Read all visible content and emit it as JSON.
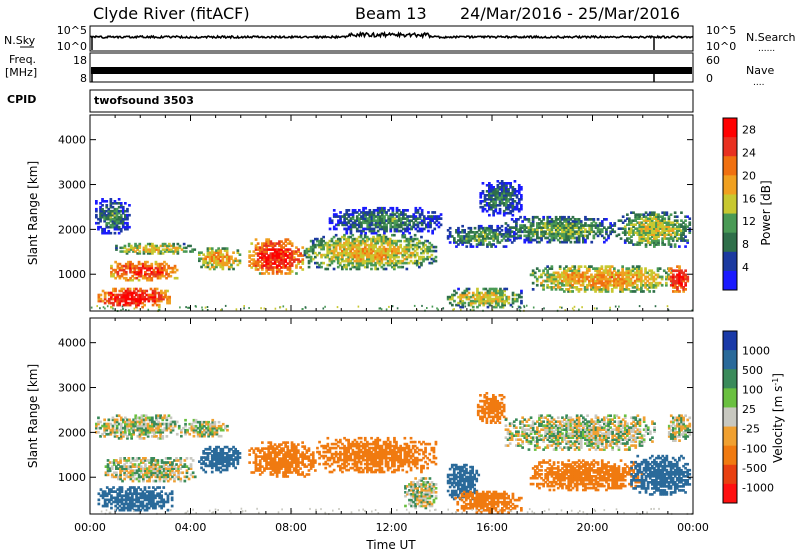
{
  "header": {
    "station_title": "Clyde River (fitACF)",
    "beam_label": "Beam 13",
    "date_range": "24/Mar/2016 - 25/Mar/2016"
  },
  "aux": {
    "nsky_label": "N.Sky",
    "nsearch_label": "N.Search",
    "nsearch_dots": "......",
    "freq_label_line1": "Freq.",
    "freq_label_line2": "[MHz]",
    "nave_label": "Nave",
    "nave_dots": "....",
    "cpid_label": "CPID",
    "cpid_value": "twofsound 3503",
    "noise_ticks_left": [
      "10^5",
      "10^0"
    ],
    "noise_ticks_right": [
      "10^5",
      "10^0"
    ],
    "freq_ticks": [
      "18",
      "8"
    ],
    "nave_ticks": [
      "60",
      "0"
    ]
  },
  "colors": {
    "power_scale": [
      "#1a1aff",
      "#1c3aa0",
      "#2f6f4a",
      "#4a9a55",
      "#c8c830",
      "#f0a020",
      "#f07010",
      "#e83020",
      "#ff0000"
    ],
    "velocity_scale": [
      "#1a3aa8",
      "#2a6a9a",
      "#3a8a5a",
      "#6ac040",
      "#c8c8c0",
      "#f0a030",
      "#f07a10",
      "#e84010",
      "#ff1010"
    ]
  },
  "chart_data": [
    {
      "type": "heatmap",
      "name": "power",
      "title": "",
      "xlabel": "",
      "ylabel": "Slant Range [km]",
      "xlim": [
        0,
        24
      ],
      "ylim": [
        180,
        4550
      ],
      "yticks": [
        "1000",
        "2000",
        "3000",
        "4000"
      ],
      "colorbar": {
        "label": "Power [dB]",
        "ticks": [
          "4",
          "8",
          "12",
          "16",
          "20",
          "24",
          "28"
        ],
        "range": [
          0,
          30
        ]
      },
      "features": [
        {
          "t0": 0.3,
          "t1": 3.2,
          "r0": 250,
          "r1": 700,
          "value": 28
        },
        {
          "t0": 0.8,
          "t1": 3.5,
          "r0": 850,
          "r1": 1300,
          "value": 26
        },
        {
          "t0": 1.0,
          "t1": 4.2,
          "r0": 1450,
          "r1": 1700,
          "value": 18
        },
        {
          "t0": 0.2,
          "t1": 1.6,
          "r0": 1900,
          "r1": 2700,
          "value": 10
        },
        {
          "t0": 4.3,
          "t1": 6.0,
          "r0": 1100,
          "r1": 1600,
          "value": 20
        },
        {
          "t0": 6.3,
          "t1": 8.5,
          "r0": 1000,
          "r1": 1800,
          "value": 27
        },
        {
          "t0": 8.5,
          "t1": 13.8,
          "r0": 1100,
          "r1": 1900,
          "value": 18
        },
        {
          "t0": 9.5,
          "t1": 14.0,
          "r0": 1900,
          "r1": 2500,
          "value": 10
        },
        {
          "t0": 14.2,
          "t1": 17.2,
          "r0": 250,
          "r1": 700,
          "value": 17
        },
        {
          "t0": 14.2,
          "t1": 17.0,
          "r0": 1600,
          "r1": 2100,
          "value": 12
        },
        {
          "t0": 15.5,
          "t1": 17.2,
          "r0": 2300,
          "r1": 3100,
          "value": 9
        },
        {
          "t0": 16.5,
          "t1": 21.0,
          "r0": 1700,
          "r1": 2300,
          "value": 13
        },
        {
          "t0": 17.5,
          "t1": 23.3,
          "r0": 600,
          "r1": 1200,
          "value": 20
        },
        {
          "t0": 21.0,
          "t1": 23.9,
          "r0": 1600,
          "r1": 2400,
          "value": 16
        },
        {
          "t0": 23.0,
          "t1": 23.9,
          "r0": 600,
          "r1": 1200,
          "value": 28
        }
      ]
    },
    {
      "type": "heatmap",
      "name": "velocity",
      "title": "",
      "xlabel": "Time UT",
      "ylabel": "Slant Range [km]",
      "xlim": [
        0,
        24
      ],
      "ylim": [
        180,
        4550
      ],
      "xticks": [
        "00:00",
        "04:00",
        "08:00",
        "12:00",
        "16:00",
        "20:00",
        "00:00"
      ],
      "yticks": [
        "1000",
        "2000",
        "3000",
        "4000"
      ],
      "colorbar": {
        "label": "Velocity [m s^-1]",
        "ticks": [
          "1000",
          "500",
          "100",
          "25",
          "-25",
          "-100",
          "-500",
          "-1000"
        ]
      },
      "features": [
        {
          "t0": 0.2,
          "t1": 3.5,
          "r0": 1850,
          "r1": 2400,
          "value": 0
        },
        {
          "t0": 0.3,
          "t1": 3.3,
          "r0": 250,
          "r1": 800,
          "value": 200
        },
        {
          "t0": 0.5,
          "t1": 4.3,
          "r0": 900,
          "r1": 1450,
          "value": 0
        },
        {
          "t0": 3.5,
          "t1": 5.5,
          "r0": 1900,
          "r1": 2300,
          "value": 0
        },
        {
          "t0": 4.3,
          "t1": 6.0,
          "r0": 1100,
          "r1": 1700,
          "value": 300
        },
        {
          "t0": 6.3,
          "t1": 9.0,
          "r0": 1000,
          "r1": 1800,
          "value": -250
        },
        {
          "t0": 9.0,
          "t1": 13.8,
          "r0": 1100,
          "r1": 1900,
          "value": -300
        },
        {
          "t0": 12.5,
          "t1": 13.8,
          "r0": 300,
          "r1": 1000,
          "value": 0
        },
        {
          "t0": 14.2,
          "t1": 15.5,
          "r0": 500,
          "r1": 1300,
          "value": 400
        },
        {
          "t0": 14.5,
          "t1": 17.2,
          "r0": 200,
          "r1": 700,
          "value": -350
        },
        {
          "t0": 15.4,
          "t1": 16.6,
          "r0": 2200,
          "r1": 2900,
          "value": -400
        },
        {
          "t0": 16.5,
          "t1": 22.5,
          "r0": 1600,
          "r1": 2400,
          "value": 0
        },
        {
          "t0": 17.5,
          "t1": 22.0,
          "r0": 700,
          "r1": 1400,
          "value": -300
        },
        {
          "t0": 21.5,
          "t1": 23.9,
          "r0": 600,
          "r1": 1500,
          "value": 250
        },
        {
          "t0": 23.0,
          "t1": 23.9,
          "r0": 1800,
          "r1": 2400,
          "value": 0
        }
      ]
    }
  ]
}
